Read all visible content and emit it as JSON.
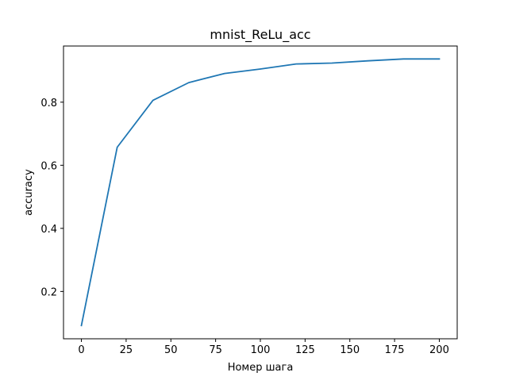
{
  "chart_data": {
    "type": "line",
    "title": "mnist_ReLu_acc",
    "xlabel": "Номер шага",
    "ylabel": "accuracy",
    "xlim": [
      -10,
      210
    ],
    "ylim": [
      0.05,
      0.978
    ],
    "xticks": [
      0,
      25,
      50,
      75,
      100,
      125,
      150,
      175,
      200
    ],
    "yticks": [
      0.2,
      0.4,
      0.6,
      0.8
    ],
    "grid": false,
    "series": [
      {
        "x": [
          0,
          20,
          40,
          60,
          80,
          100,
          120,
          140,
          160,
          180,
          200
        ],
        "values": [
          0.092,
          0.657,
          0.806,
          0.862,
          0.891,
          0.905,
          0.921,
          0.924,
          0.931,
          0.937,
          0.937
        ],
        "color": "#1f77b4"
      }
    ]
  }
}
